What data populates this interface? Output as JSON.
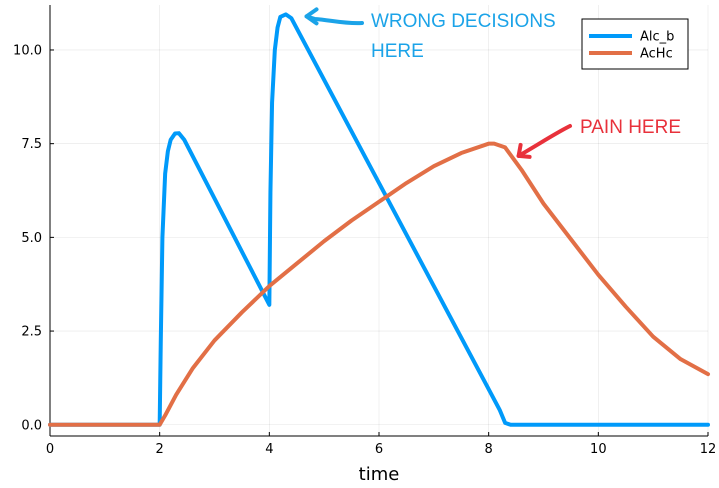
{
  "chart_data": {
    "type": "line",
    "xlabel": "time",
    "ylabel": "",
    "xlim": [
      0,
      12
    ],
    "ylim": [
      -0.3,
      11.2
    ],
    "x_ticks": [
      0,
      2,
      4,
      6,
      8,
      10,
      12
    ],
    "y_ticks": [
      0.0,
      2.5,
      5.0,
      7.5,
      10.0
    ],
    "x_tick_labels": [
      "0",
      "2",
      "4",
      "6",
      "8",
      "10",
      "12"
    ],
    "y_tick_labels": [
      "0.0",
      "2.5",
      "5.0",
      "7.5",
      "10.0"
    ],
    "grid": true,
    "legend_position": "top-right",
    "series": [
      {
        "name": "Alc_b",
        "color": "#009AFA",
        "x": [
          0,
          2,
          2.02,
          2.05,
          2.1,
          2.15,
          2.2,
          2.28,
          2.35,
          2.45,
          4.0,
          4.02,
          4.05,
          4.1,
          4.15,
          4.2,
          4.3,
          4.4,
          4.6,
          8.2,
          8.3,
          8.4,
          12
        ],
        "y": [
          0,
          0,
          2.2,
          5.0,
          6.7,
          7.3,
          7.6,
          7.77,
          7.78,
          7.6,
          3.2,
          6.2,
          8.6,
          10.0,
          10.6,
          10.88,
          10.95,
          10.85,
          10.3,
          0.4,
          0.05,
          0,
          0
        ]
      },
      {
        "name": "AcHc",
        "color": "#E26F46",
        "x": [
          0,
          2,
          2.1,
          2.3,
          2.6,
          3.0,
          3.5,
          4.0,
          4.5,
          5.0,
          5.5,
          6.0,
          6.5,
          7.0,
          7.5,
          8.0,
          8.1,
          8.3,
          8.6,
          9.0,
          9.5,
          10.0,
          10.5,
          11.0,
          11.5,
          12.0
        ],
        "y": [
          0,
          0,
          0.25,
          0.8,
          1.5,
          2.25,
          3.0,
          3.7,
          4.3,
          4.9,
          5.45,
          5.95,
          6.45,
          6.9,
          7.25,
          7.5,
          7.5,
          7.4,
          6.8,
          5.9,
          4.95,
          4.0,
          3.15,
          2.35,
          1.75,
          1.35
        ]
      }
    ],
    "annotations": [
      {
        "text_lines": [
          "WRONG DECISIONS",
          "HERE"
        ],
        "color": "#1BA3E8",
        "arrow_to": [
          4.35,
          10.95
        ]
      },
      {
        "text_lines": [
          "PAIN HERE"
        ],
        "color": "#E8313B",
        "arrow_to": [
          8.4,
          7.2
        ]
      }
    ]
  }
}
